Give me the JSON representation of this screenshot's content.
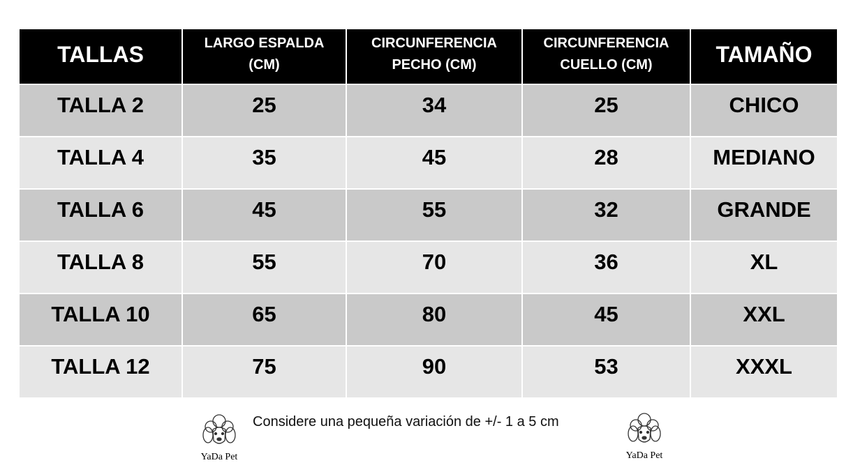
{
  "table": {
    "header": [
      "TALLAS",
      "LARGO ESPALDA (CM)",
      "CIRCUNFERENCIA PECHO (CM)",
      "CIRCUNFERENCIA CUELLO (CM)",
      "TAMAÑO"
    ],
    "rows": [
      [
        "TALLA 2",
        "25",
        "34",
        "25",
        "CHICO"
      ],
      [
        "TALLA 4",
        "35",
        "45",
        "28",
        "MEDIANO"
      ],
      [
        "TALLA 6",
        "45",
        "55",
        "32",
        "GRANDE"
      ],
      [
        "TALLA 8",
        "55",
        "70",
        "36",
        "XL"
      ],
      [
        "TALLA 10",
        "65",
        "80",
        "45",
        "XXL"
      ],
      [
        "TALLA 12",
        "75",
        "90",
        "53",
        "XXXL"
      ]
    ]
  },
  "footer": {
    "note": "Considere una pequeña variación de +/- 1 a 5 cm",
    "logos": [
      "YaDa Pet",
      "YaDa Pet"
    ]
  }
}
